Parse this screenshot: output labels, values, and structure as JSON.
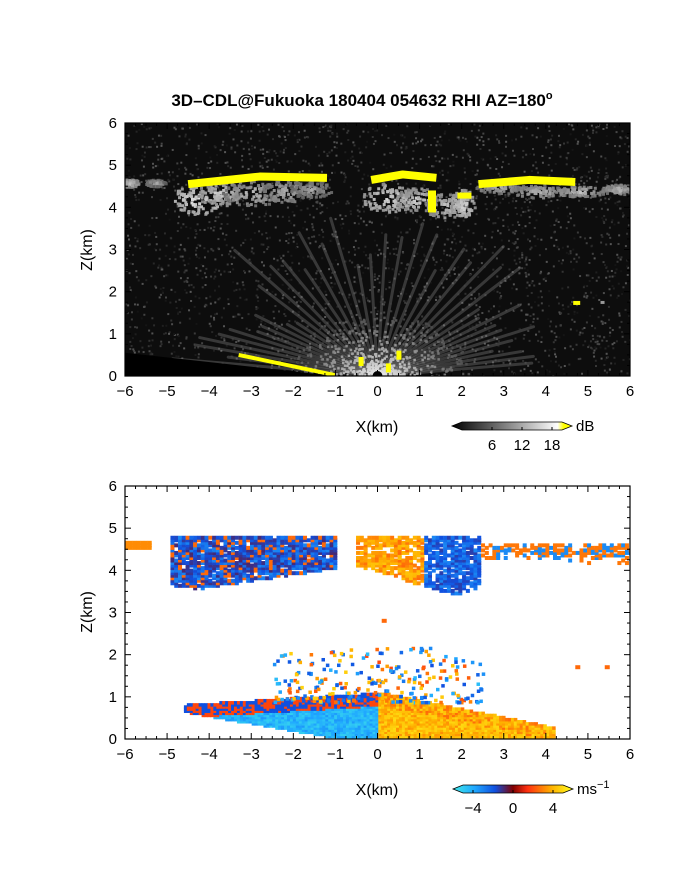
{
  "figure": {
    "title_prefix": "3D–CDL@Fukuoka 180404 054632 RHI AZ=180",
    "title_degree": "o"
  },
  "chart_data": [
    {
      "type": "heatmap",
      "panel": "top",
      "title": "3D–CDL@Fukuoka 180404 054632 RHI AZ=180°",
      "xlabel": "X(km)",
      "ylabel": "Z(km)",
      "xlim": [
        -6,
        6
      ],
      "ylim": [
        0,
        6
      ],
      "xticks": [
        -6,
        -5,
        -4,
        -3,
        -2,
        -1,
        0,
        1,
        2,
        3,
        4,
        5,
        6
      ],
      "yticks": [
        0,
        1,
        2,
        3,
        4,
        5,
        6
      ],
      "quantity": "SNR",
      "colorbar": {
        "unit": "dB",
        "ticks": [
          6,
          12,
          18
        ],
        "range": [
          0,
          20
        ],
        "colors": [
          "#000000",
          "#ffffff",
          "#ffff00"
        ]
      },
      "features": [
        {
          "name": "cloud layer",
          "x": [
            -6,
            6
          ],
          "z_top": 4.8,
          "z_base": 3.5
        },
        {
          "name": "saturated cloud top",
          "x": [
            -4.6,
            -1.1
          ],
          "z": 4.7
        },
        {
          "name": "saturated cloud top",
          "x": [
            -0.2,
            1.4
          ],
          "z": 4.75
        },
        {
          "name": "saturated cloud top",
          "x": [
            2.4,
            4.7
          ],
          "z": 4.6
        },
        {
          "name": "near-surface echo",
          "x": [
            -2,
            1.5
          ],
          "z": [
            0,
            1.6
          ]
        },
        {
          "name": "isolated echo",
          "x": [
            4.6,
            5.4
          ],
          "z": 1.75
        }
      ]
    },
    {
      "type": "heatmap",
      "panel": "bottom",
      "xlabel": "X(km)",
      "ylabel": "Z(km)",
      "xlim": [
        -6,
        6
      ],
      "ylim": [
        0,
        6
      ],
      "xticks": [
        -6,
        -5,
        -4,
        -3,
        -2,
        -1,
        0,
        1,
        2,
        3,
        4,
        5,
        6
      ],
      "yticks": [
        0,
        1,
        2,
        3,
        4,
        5,
        6
      ],
      "quantity": "radial velocity",
      "colorbar": {
        "unit": "ms",
        "unit_exponent": "−1",
        "ticks": [
          "−4",
          "0",
          "4"
        ],
        "range": [
          -5,
          5
        ]
      },
      "features": [
        {
          "name": "approaching boundary-layer flow",
          "x": [
            -4.5,
            0
          ],
          "z": [
            0,
            1
          ],
          "velocity": -4
        },
        {
          "name": "receding boundary-layer flow",
          "x": [
            0,
            4
          ],
          "z": [
            0,
            1
          ],
          "velocity": 3
        },
        {
          "name": "cloud layer mixed velocities",
          "x": [
            -6,
            6
          ],
          "z": [
            3.5,
            4.9
          ]
        },
        {
          "name": "isolated echo",
          "x": [
            4.6,
            5.4
          ],
          "z": 1.75,
          "velocity": 2
        }
      ]
    }
  ]
}
